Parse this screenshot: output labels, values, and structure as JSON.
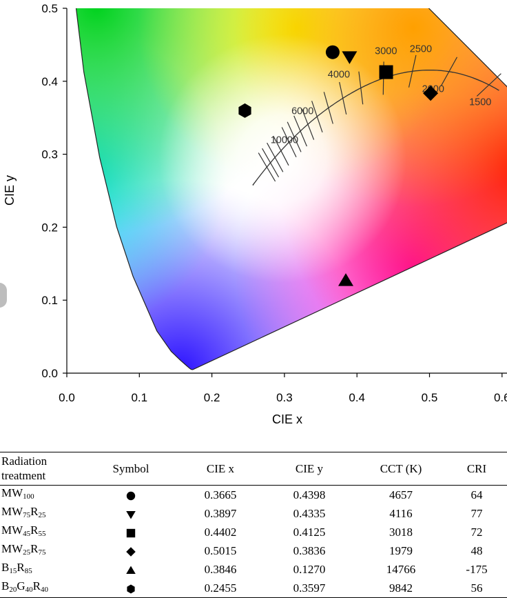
{
  "chart_data": {
    "type": "scatter",
    "xlabel": "CIE x",
    "ylabel": "CIE y",
    "xlim": [
      0.0,
      0.6
    ],
    "ylim": [
      0.0,
      0.5
    ],
    "x_ticks": [
      "0.0",
      "0.1",
      "0.2",
      "0.3",
      "0.4",
      "0.5",
      "0.6"
    ],
    "y_ticks": [
      "0.0",
      "0.1",
      "0.2",
      "0.3",
      "0.4",
      "0.5"
    ],
    "points": [
      {
        "symbol": "circle",
        "x": 0.3665,
        "y": 0.4398
      },
      {
        "symbol": "triangle-down",
        "x": 0.3897,
        "y": 0.4335
      },
      {
        "symbol": "square",
        "x": 0.4402,
        "y": 0.4125
      },
      {
        "symbol": "diamond",
        "x": 0.5015,
        "y": 0.3836
      },
      {
        "symbol": "triangle-up",
        "x": 0.3846,
        "y": 0.127
      },
      {
        "symbol": "hexagon",
        "x": 0.2455,
        "y": 0.3597
      }
    ],
    "cct_labels": [
      {
        "text": "10000",
        "x": 0.3,
        "y": 0.315
      },
      {
        "text": "6000",
        "x": 0.325,
        "y": 0.355
      },
      {
        "text": "4000",
        "x": 0.375,
        "y": 0.405
      },
      {
        "text": "3000",
        "x": 0.44,
        "y": 0.437
      },
      {
        "text": "2500",
        "x": 0.488,
        "y": 0.44
      },
      {
        "text": "2000",
        "x": 0.505,
        "y": 0.385
      },
      {
        "text": "1500",
        "x": 0.57,
        "y": 0.367
      }
    ]
  },
  "table": {
    "headers": {
      "treatment": [
        "Radiation",
        "treatment"
      ],
      "symbol": "Symbol",
      "cie_x": "CIE x",
      "cie_y": "CIE y",
      "cct": "CCT (K)",
      "cri": "CRI"
    },
    "rows": [
      {
        "treatment": [
          [
            "MW",
            "100"
          ]
        ],
        "symbol": "circle",
        "cie_x": "0.3665",
        "cie_y": "0.4398",
        "cct": "4657",
        "cri": "64"
      },
      {
        "treatment": [
          [
            "MW",
            "75"
          ],
          [
            "R",
            "25"
          ]
        ],
        "symbol": "triangle-down",
        "cie_x": "0.3897",
        "cie_y": "0.4335",
        "cct": "4116",
        "cri": "77"
      },
      {
        "treatment": [
          [
            "MW",
            "45"
          ],
          [
            "R",
            "55"
          ]
        ],
        "symbol": "square",
        "cie_x": "0.4402",
        "cie_y": "0.4125",
        "cct": "3018",
        "cri": "72"
      },
      {
        "treatment": [
          [
            "MW",
            "25"
          ],
          [
            "R",
            "75"
          ]
        ],
        "symbol": "diamond",
        "cie_x": "0.5015",
        "cie_y": "0.3836",
        "cct": "1979",
        "cri": "48"
      },
      {
        "treatment": [
          [
            "B",
            "15"
          ],
          [
            "R",
            "85"
          ]
        ],
        "symbol": "triangle-up",
        "cie_x": "0.3846",
        "cie_y": "0.1270",
        "cct": "14766",
        "cri": "-175"
      },
      {
        "treatment": [
          [
            "B",
            "20"
          ],
          [
            "G",
            "40"
          ],
          [
            "R",
            "40"
          ]
        ],
        "symbol": "hexagon",
        "cie_x": "0.2455",
        "cie_y": "0.3597",
        "cct": "9842",
        "cri": "56"
      }
    ]
  }
}
